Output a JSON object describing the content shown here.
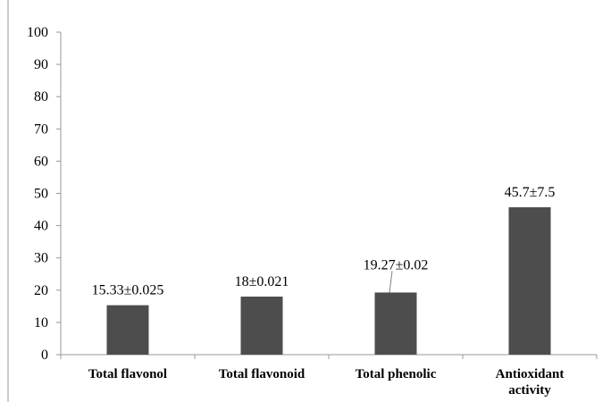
{
  "colors": {
    "bar": "#4d4d4d",
    "axis": "#9a9a9a",
    "text": "#000000"
  },
  "chart_data": {
    "type": "bar",
    "title": "",
    "xlabel": "",
    "ylabel": "",
    "ylim": [
      0,
      100
    ],
    "yticks": [
      "0",
      "10",
      "20",
      "30",
      "40",
      "50",
      "60",
      "70",
      "80",
      "90",
      "100"
    ],
    "grid": false,
    "legend": "none",
    "categories": [
      [
        "Total flavonol"
      ],
      [
        "Total flavonoid"
      ],
      [
        "Total phenolic"
      ],
      [
        "Antioxidant",
        "activity"
      ]
    ],
    "values": [
      15.33,
      18,
      19.27,
      45.7
    ],
    "data_labels": [
      "15.33±0.025",
      "18±0.021",
      "19.27±0.02",
      "45.7±7.5"
    ]
  }
}
